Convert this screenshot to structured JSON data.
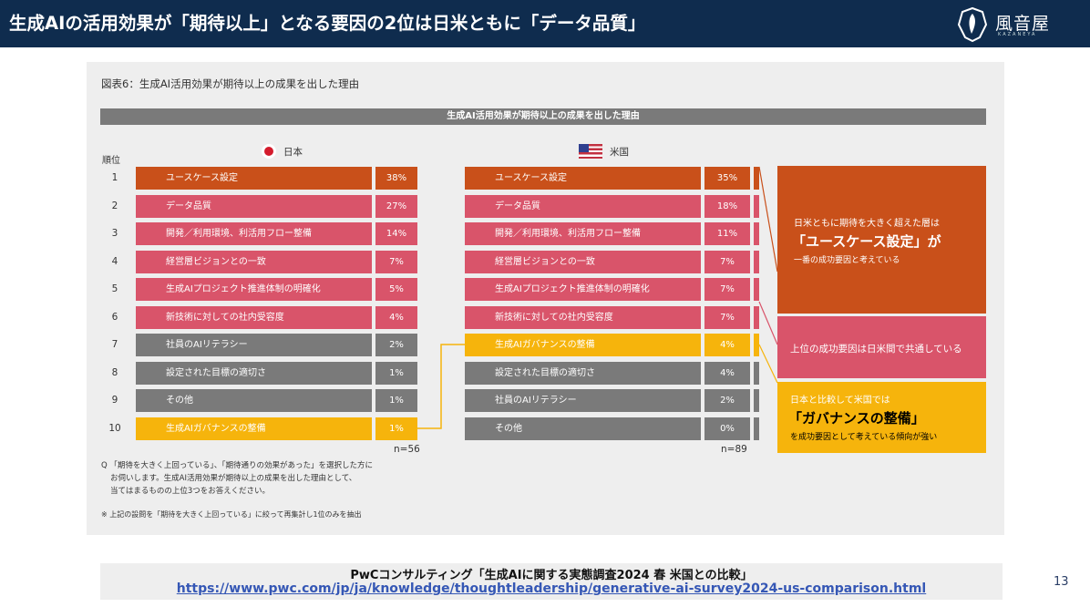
{
  "header": {
    "title": "生成AIの活用効果が「期待以上」となる要因の2位は日米ともに「データ品質」",
    "logo_text": "風音屋",
    "logo_sub": "KAZANEYA"
  },
  "colors": {
    "orange": "#c9501a",
    "pink": "#d9546a",
    "gray": "#7a7a7a",
    "yellow": "#f6b40c",
    "navy": "#0f2c4e"
  },
  "chart_data": {
    "type": "bar",
    "title": "図表6：生成AI活用効果が期待以上の成果を出した理由",
    "header": "生成AI活用効果が期待以上の成果を出した理由",
    "rank_label": "順位",
    "japan": {
      "name": "日本",
      "n": "n=56",
      "rows": [
        {
          "rank": "1",
          "label": "ユースケース設定",
          "pct": "38%",
          "value": 38,
          "color": "orange"
        },
        {
          "rank": "2",
          "label": "データ品質",
          "pct": "27%",
          "value": 27,
          "color": "pink"
        },
        {
          "rank": "3",
          "label": "開発／利用環境、利活用フロー整備",
          "pct": "14%",
          "value": 14,
          "color": "pink"
        },
        {
          "rank": "4",
          "label": "経営層ビジョンとの一致",
          "pct": "7%",
          "value": 7,
          "color": "pink"
        },
        {
          "rank": "5",
          "label": "生成AIプロジェクト推進体制の明確化",
          "pct": "5%",
          "value": 5,
          "color": "pink"
        },
        {
          "rank": "6",
          "label": "新技術に対しての社内受容度",
          "pct": "4%",
          "value": 4,
          "color": "pink"
        },
        {
          "rank": "7",
          "label": "社員のAIリテラシー",
          "pct": "2%",
          "value": 2,
          "color": "gray"
        },
        {
          "rank": "8",
          "label": "設定された目標の適切さ",
          "pct": "1%",
          "value": 1,
          "color": "gray"
        },
        {
          "rank": "9",
          "label": "その他",
          "pct": "1%",
          "value": 1,
          "color": "gray"
        },
        {
          "rank": "10",
          "label": "生成AIガバナンスの整備",
          "pct": "1%",
          "value": 1,
          "color": "yellow"
        }
      ]
    },
    "us": {
      "name": "米国",
      "n": "n=89",
      "rows": [
        {
          "label": "ユースケース設定",
          "pct": "35%",
          "value": 35,
          "color": "orange"
        },
        {
          "label": "データ品質",
          "pct": "18%",
          "value": 18,
          "color": "pink"
        },
        {
          "label": "開発／利用環境、利活用フロー整備",
          "pct": "11%",
          "value": 11,
          "color": "pink"
        },
        {
          "label": "経営層ビジョンとの一致",
          "pct": "7%",
          "value": 7,
          "color": "pink"
        },
        {
          "label": "生成AIプロジェクト推進体制の明確化",
          "pct": "7%",
          "value": 7,
          "color": "pink"
        },
        {
          "label": "新技術に対しての社内受容度",
          "pct": "7%",
          "value": 7,
          "color": "pink"
        },
        {
          "label": "生成AIガバナンスの整備",
          "pct": "4%",
          "value": 4,
          "color": "yellow"
        },
        {
          "label": "設定された目標の適切さ",
          "pct": "4%",
          "value": 4,
          "color": "gray"
        },
        {
          "label": "社員のAIリテラシー",
          "pct": "2%",
          "value": 2,
          "color": "gray"
        },
        {
          "label": "その他",
          "pct": "0%",
          "value": 0,
          "color": "gray"
        }
      ]
    }
  },
  "callouts": {
    "usecase": {
      "line1": "日米ともに期待を大きく超えた層は",
      "line2": "「ユースケース設定」が",
      "line3": "一番の成功要因と考えている"
    },
    "common": {
      "line1": "上位の成功要因は日米間で共通している"
    },
    "governance": {
      "line1": "日本と比較して米国では",
      "line2": "「ガバナンスの整備」",
      "line3": "を成功要因として考えている傾向が強い"
    }
  },
  "notes": {
    "q1": "Q 「期待を大きく上回っている」、「期待通りの効果があった」を選択した方に",
    "q2": "お伺いします。生成AI活用効果が期待以上の成果を出した理由として、",
    "q3": "当てはまるものの上位3つをお答えください。",
    "footnote": "※ 上記の設問を「期待を大きく上回っている」に絞って再集計し1位のみを抽出"
  },
  "source": {
    "line1": "PwCコンサルティング「生成AIに関する実態調査2024 春 米国との比較」",
    "url": "https://www.pwc.com/jp/ja/knowledge/thoughtleadership/generative-ai-survey2024-us-comparison.html"
  },
  "page_number": "13"
}
